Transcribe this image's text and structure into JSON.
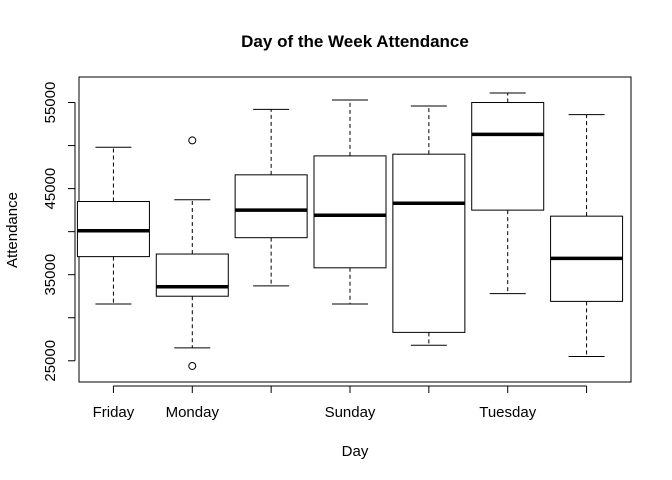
{
  "chart_data": {
    "type": "boxplot",
    "title": "Day of the Week Attendance",
    "xlabel": "Day",
    "ylabel": "Attendance",
    "ylim": [
      23000,
      57500
    ],
    "y_ticks": [
      25000,
      30000,
      35000,
      40000,
      45000,
      50000,
      55000
    ],
    "y_tick_labels": [
      "25000",
      "",
      "35000",
      "",
      "45000",
      "",
      "55000"
    ],
    "grid": false,
    "legend": "none",
    "categories": [
      "Friday",
      "Monday",
      "",
      "Sunday",
      "",
      "Tuesday",
      ""
    ],
    "boxes": [
      {
        "label": "Friday",
        "whisker_low": 31600,
        "q1": 37100,
        "median": 40100,
        "q3": 43500,
        "whisker_high": 49800,
        "outliers": []
      },
      {
        "label": "Monday",
        "whisker_low": 26500,
        "q1": 32500,
        "median": 33600,
        "q3": 37400,
        "whisker_high": 43700,
        "outliers": [
          50600,
          24400
        ]
      },
      {
        "label": "",
        "whisker_low": 33700,
        "q1": 39300,
        "median": 42500,
        "q3": 46600,
        "whisker_high": 54200,
        "outliers": []
      },
      {
        "label": "Sunday",
        "whisker_low": 31600,
        "q1": 35800,
        "median": 41900,
        "q3": 48800,
        "whisker_high": 55300,
        "outliers": []
      },
      {
        "label": "",
        "whisker_low": 26800,
        "q1": 28300,
        "median": 43300,
        "q3": 49000,
        "whisker_high": 54600,
        "outliers": []
      },
      {
        "label": "Tuesday",
        "whisker_low": 32800,
        "q1": 42500,
        "median": 51300,
        "q3": 55000,
        "whisker_high": 56100,
        "outliers": []
      },
      {
        "label": "",
        "whisker_low": 25500,
        "q1": 31900,
        "median": 36900,
        "q3": 41800,
        "whisker_high": 53600,
        "outliers": []
      }
    ],
    "colors": {
      "stroke": "#000000",
      "box_fill": "#ffffff"
    }
  }
}
